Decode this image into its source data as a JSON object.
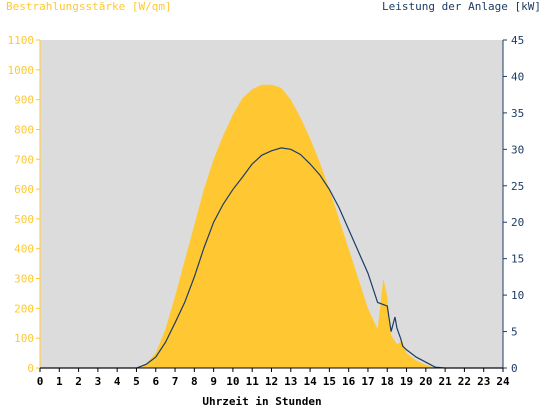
{
  "chart_data": {
    "type": "area",
    "title_left": "Bestrahlungsstärke [W/qm]",
    "title_right": "Leistung der Anlage [kW]",
    "xlabel": "Uhrzeit in Stunden",
    "x_ticks": [
      "0",
      "1",
      "2",
      "3",
      "4",
      "5",
      "6",
      "7",
      "8",
      "9",
      "10",
      "11",
      "12",
      "13",
      "14",
      "15",
      "16",
      "17",
      "18",
      "19",
      "20",
      "21",
      "22",
      "23",
      "24"
    ],
    "y_left_ticks": [
      "0",
      "100",
      "200",
      "300",
      "400",
      "500",
      "600",
      "700",
      "800",
      "900",
      "1000",
      "1100"
    ],
    "y_right_ticks": [
      "0",
      "5",
      "10",
      "15",
      "20",
      "25",
      "30",
      "35",
      "40",
      "45"
    ],
    "xlim": [
      0,
      24
    ],
    "ylim_left": [
      0,
      1100
    ],
    "ylim_right": [
      0,
      45
    ],
    "grid": false,
    "colors": {
      "plot_bg": "#dcdcdc",
      "irradiance_fill": "#ffc832",
      "power_line": "#1e3c64",
      "left_axis": "#ffc832",
      "right_axis": "#1e3c64"
    },
    "series": [
      {
        "axis": "left",
        "style": "area",
        "x": [
          0,
          5.0,
          5.5,
          6.0,
          6.5,
          7.0,
          7.5,
          8.0,
          8.5,
          9.0,
          9.5,
          10.0,
          10.5,
          11.0,
          11.5,
          12.0,
          12.5,
          13.0,
          13.5,
          14.0,
          14.5,
          15.0,
          15.5,
          16.0,
          16.5,
          17.0,
          17.5,
          17.8,
          18.0,
          18.2,
          18.5,
          18.8,
          19.0,
          19.5,
          20.0,
          20.5,
          21.0,
          24
        ],
        "y": [
          0,
          0,
          15,
          50,
          130,
          240,
          360,
          480,
          600,
          700,
          780,
          850,
          905,
          935,
          950,
          950,
          940,
          900,
          840,
          770,
          690,
          600,
          500,
          400,
          300,
          200,
          130,
          300,
          240,
          110,
          80,
          90,
          50,
          25,
          10,
          0,
          0,
          0
        ]
      },
      {
        "axis": "right",
        "style": "line",
        "x": [
          0,
          5.0,
          5.5,
          6.0,
          6.5,
          7.0,
          7.5,
          8.0,
          8.5,
          9.0,
          9.5,
          10.0,
          10.5,
          11.0,
          11.5,
          12.0,
          12.5,
          13.0,
          13.5,
          14.0,
          14.5,
          15.0,
          15.5,
          16.0,
          16.5,
          17.0,
          17.5,
          18.0,
          18.2,
          18.4,
          18.5,
          18.7,
          18.8,
          19.0,
          19.5,
          20.0,
          20.5,
          21.0,
          24
        ],
        "y": [
          0,
          0,
          0.5,
          1.5,
          3.5,
          6.2,
          9.0,
          12.5,
          16.5,
          20.0,
          22.5,
          24.5,
          26.2,
          28.0,
          29.2,
          29.8,
          30.2,
          30.0,
          29.3,
          28.0,
          26.5,
          24.5,
          22.0,
          19.0,
          16.0,
          13.0,
          9.0,
          8.5,
          5.0,
          7.0,
          5.5,
          4.0,
          3.0,
          2.5,
          1.5,
          0.8,
          0.1,
          0,
          0
        ]
      }
    ]
  }
}
